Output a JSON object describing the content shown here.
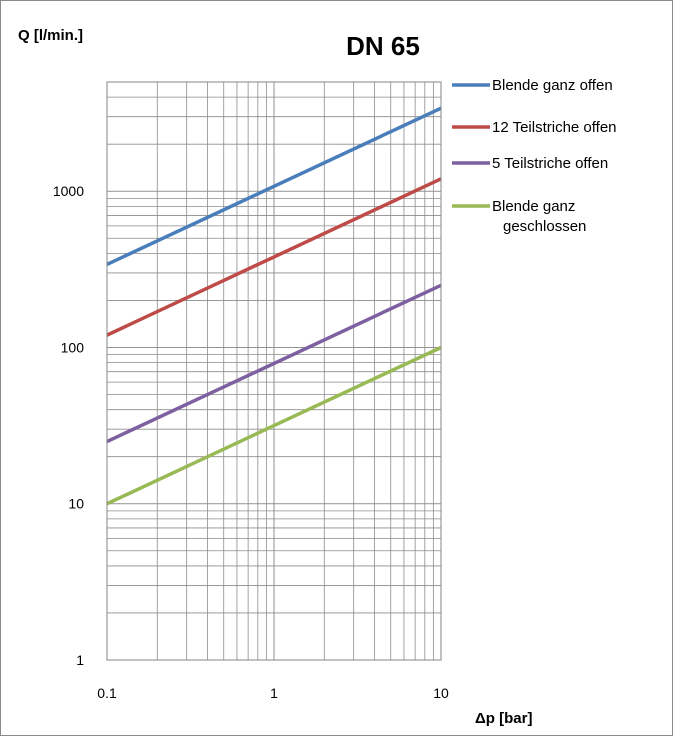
{
  "chart_data": {
    "type": "line",
    "title": "DN 65",
    "xlabel": "Δp [bar]",
    "ylabel": "Q [l/min.]",
    "xscale": "log",
    "yscale": "log",
    "xlim": [
      0.1,
      10
    ],
    "ylim": [
      1,
      5000
    ],
    "xticks": [
      0.1,
      1,
      10
    ],
    "xtick_labels": [
      "0.1",
      "1",
      "10"
    ],
    "yticks": [
      1,
      10,
      100,
      1000
    ],
    "ytick_labels": [
      "1",
      "10",
      "100",
      "1000"
    ],
    "grid": true,
    "legend_position": "right",
    "series": [
      {
        "name": "Blende ganz offen",
        "color": "#4a7ebb",
        "x": [
          0.1,
          10
        ],
        "y": [
          340,
          3400
        ]
      },
      {
        "name": "12 Teilstriche offen",
        "color": "#be4b48",
        "x": [
          0.1,
          10
        ],
        "y": [
          120,
          1200
        ]
      },
      {
        "name": "5 Teilstriche offen",
        "color": "#7d60a0",
        "x": [
          0.1,
          10
        ],
        "y": [
          25,
          250
        ]
      },
      {
        "name": "Blende ganz geschlossen",
        "color": "#98b954",
        "x": [
          0.1,
          10
        ],
        "y": [
          10,
          100
        ]
      }
    ]
  }
}
